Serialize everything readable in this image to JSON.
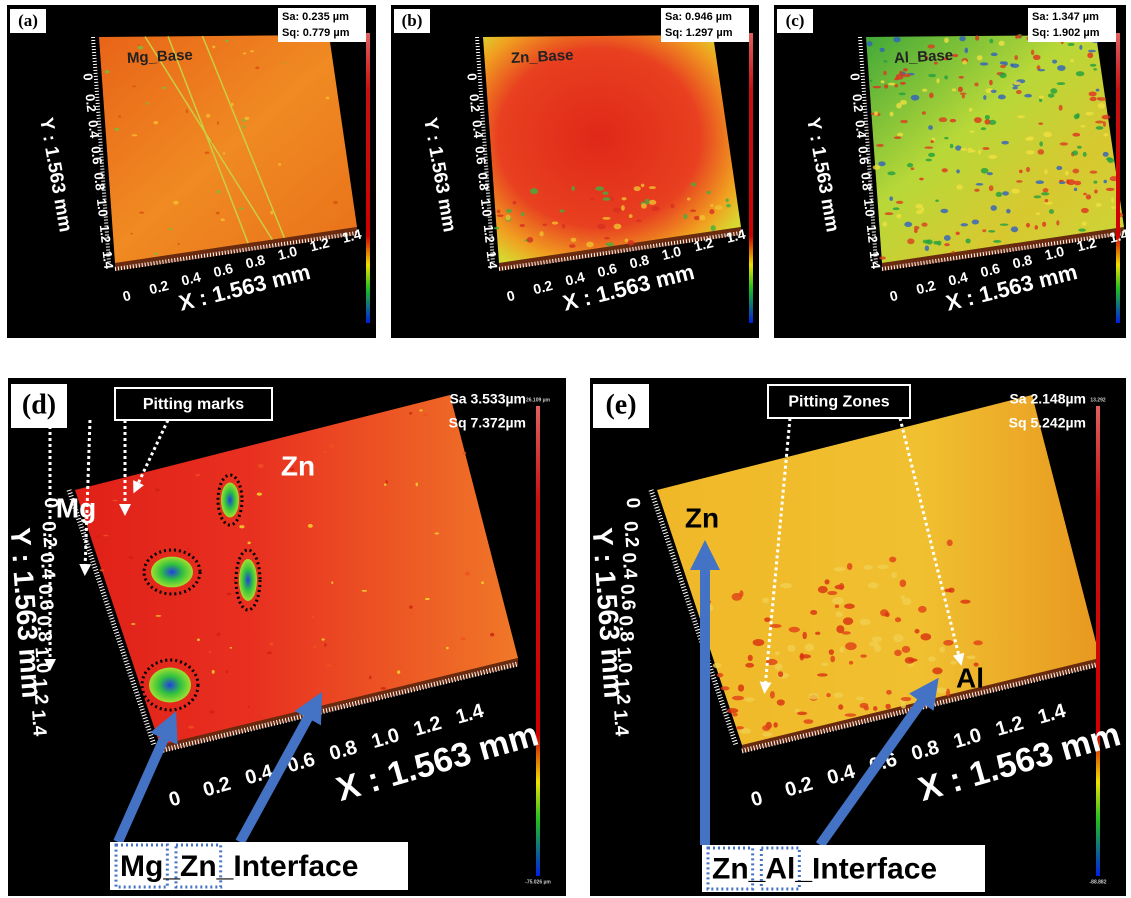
{
  "panels": [
    {
      "label": "(a)",
      "sa": "Sa: 0.235 µm",
      "sq": "Sq: 0.779 µm",
      "sample": "Mg_Base",
      "x_axis": "X : 1.563 mm",
      "y_axis": "Y : 1.563 mm",
      "x_ticks": [
        "0",
        "0.2",
        "0.4",
        "0.6",
        "0.8",
        "1.0",
        "1.2",
        "1.4"
      ],
      "y_ticks": [
        "0",
        "0.2",
        "0.4",
        "0.6",
        "0.8",
        "1.0",
        "1.2",
        "1.4"
      ]
    },
    {
      "label": "(b)",
      "sa": "Sa: 0.946 µm",
      "sq": "Sq: 1.297 µm",
      "sample": "Zn_Base",
      "x_axis": "X : 1.563 mm",
      "y_axis": "Y : 1.563 mm",
      "x_ticks": [
        "0",
        "0.2",
        "0.4",
        "0.6",
        "0.8",
        "1.0",
        "1.2",
        "1.4"
      ],
      "y_ticks": [
        "0",
        "0.2",
        "0.4",
        "0.6",
        "0.8",
        "1.0",
        "1.2",
        "1.4"
      ]
    },
    {
      "label": "(c)",
      "sa": "Sa: 1.347 µm",
      "sq": "Sq: 1.902 µm",
      "sample": "Al_Base",
      "x_axis": "X : 1.563 mm",
      "y_axis": "Y : 1.563 mm",
      "x_ticks": [
        "0",
        "0.2",
        "0.4",
        "0.6",
        "0.8",
        "1.0",
        "1.2",
        "1.4"
      ],
      "y_ticks": [
        "0",
        "0.2",
        "0.4",
        "0.6",
        "0.8",
        "1.0",
        "1.2",
        "1.4"
      ]
    },
    {
      "label": "(d)",
      "sa": "Sa 3.533µm",
      "sq": "Sq 7.372µm",
      "colorbar": [
        "26.109 µm",
        "-75.026 µm"
      ],
      "x_axis": "X : 1.563 mm",
      "y_axis": "Y : 1.563 mm",
      "x_ticks": [
        "0",
        "0.2",
        "0.4",
        "0.6",
        "0.8",
        "1.0",
        "1.2",
        "1.4"
      ],
      "y_ticks": [
        "0",
        "0.2",
        "0.4",
        "0.6",
        "0.8",
        "1.0",
        "1.2",
        "1.4"
      ],
      "pitting": "Pitting marks",
      "left_label": "Mg",
      "right_label": "Zn",
      "interface": [
        "Mg",
        "_",
        "Zn",
        "_Interface"
      ]
    },
    {
      "label": "(e)",
      "sa": "Sa 2.148µm",
      "sq": "Sq 5.242µm",
      "colorbar": [
        "13.292",
        "-88.882"
      ],
      "x_axis": "X : 1.563 mm",
      "y_axis": "Y : 1.563 mm",
      "x_ticks": [
        "0",
        "0.2",
        "0.4",
        "0.6",
        "0.8",
        "1.0",
        "1.2",
        "1.4"
      ],
      "y_ticks": [
        "0",
        "0.2",
        "0.4",
        "0.6",
        "0.8",
        "1.0",
        "1.2",
        "1.4"
      ],
      "pitting": "Pitting Zones",
      "left_label": "Zn",
      "right_label": "Al",
      "interface": [
        "Zn",
        "_",
        "Al",
        "_Interface"
      ]
    }
  ]
}
